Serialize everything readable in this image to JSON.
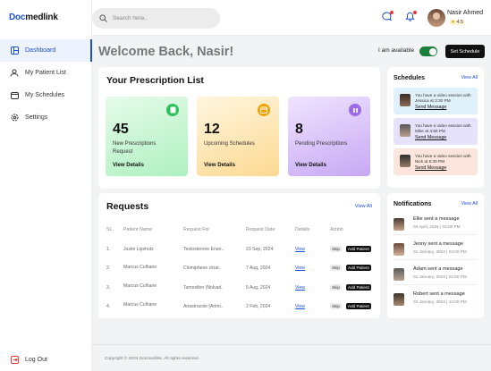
{
  "brand": {
    "logo_prefix": "Doc",
    "logo_rest": "medlink"
  },
  "nav": [
    {
      "label": "Dashboard",
      "icon": "dashboard-icon"
    },
    {
      "label": "My Patient List",
      "icon": "patients-icon"
    },
    {
      "label": "My Schedules",
      "icon": "calendar-icon"
    },
    {
      "label": "Settings",
      "icon": "gear-icon"
    }
  ],
  "logout_label": "Log Out",
  "search": {
    "placeholder": "Search here.."
  },
  "user": {
    "name": "Nasir Ahmed",
    "rating": "4.5"
  },
  "welcome": "Welcome Back, Nasir!",
  "availability_label": "I am available",
  "set_schedule_label": "Set Schedule",
  "prescriptions": {
    "title": "Your Prescription List",
    "cards": [
      {
        "value": "45",
        "label": "New Prescriptions Request",
        "link": "View Details",
        "color": "#c9f7d6"
      },
      {
        "value": "12",
        "label": "Upcoming Schedules",
        "link": "View Details",
        "color": "#ffe8b8"
      },
      {
        "value": "8",
        "label": "Pending Prescriptions",
        "link": "View Details",
        "color": "#d9c4f9"
      }
    ]
  },
  "requests": {
    "title": "Requests",
    "view_all": "View All",
    "columns": [
      "SL.",
      "Patient Name",
      "Request For",
      "Request Date",
      "Details",
      "Action"
    ],
    "rows": [
      {
        "sl": "1.",
        "name": "Justin Lipshutz",
        "request": "Testosterone Enan..",
        "date": "23 Sep, 2024",
        "details": "View",
        "skip": "Skip",
        "add": "Add Patient"
      },
      {
        "sl": "2.",
        "name": "Marcus Culhane",
        "request": "Clomiphene citrat..",
        "date": "7 Aug, 2024",
        "details": "View",
        "skip": "Skip",
        "add": "Add Patient"
      },
      {
        "sl": "3.",
        "name": "Marcus Culhane",
        "request": "Tamoxifen (Nolvad..",
        "date": "5 Aug, 2024",
        "details": "View",
        "skip": "Skip",
        "add": "Add Patient"
      },
      {
        "sl": "4.",
        "name": "Marcus Culhane",
        "request": "Anastrozole (Arimi..",
        "date": "2 Feb, 2024",
        "details": "View",
        "skip": "Skip",
        "add": "Add Patient"
      }
    ]
  },
  "schedules": {
    "title": "Schedules",
    "view_all": "View All",
    "items": [
      {
        "text": "You have a video session with Jessica at 3:30 PM",
        "link": "Send Message",
        "bg": "#dff1fb"
      },
      {
        "text": "You have a video session with Mike at 4:50 PM",
        "link": "Send Message",
        "bg": "#e6e2fb"
      },
      {
        "text": "You have a video session with Nick at 5:30 PM",
        "link": "Send Message",
        "bg": "#fbe5dc"
      }
    ]
  },
  "notifications": {
    "title": "Notifications",
    "view_all": "View All",
    "items": [
      {
        "text": "Ellie sent a message",
        "time": "04 April, 2024 | 04:00 PM"
      },
      {
        "text": "Jenny sent a message",
        "time": "01 January, 2024 | 04:00 PM"
      },
      {
        "text": "Adam sent a message",
        "time": "01 January, 2024 | 02:00 PM"
      },
      {
        "text": "Robert sent a message",
        "time": "03 January, 2024 | 12:00 PM"
      }
    ]
  },
  "footer": "Copyright © 2024 Docmedlink. All rights reserved."
}
